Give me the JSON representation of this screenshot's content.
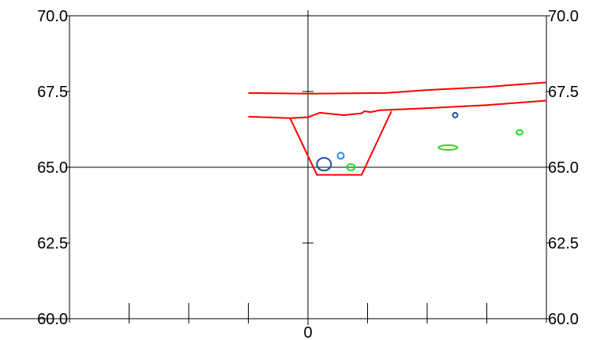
{
  "chart_data": {
    "type": "scatter",
    "title": "",
    "xlabel": "",
    "ylabel": "",
    "xlim": [
      -4,
      4
    ],
    "ylim": [
      60.0,
      70.0
    ],
    "grid": false,
    "x_tick_values": [
      -3,
      -2,
      -1,
      0,
      1,
      2,
      3
    ],
    "x_tick_labels": [
      {
        "x": 0,
        "label": "0"
      }
    ],
    "y_ticks": [
      {
        "value": 70.0,
        "label": "70.0"
      },
      {
        "value": 67.5,
        "label": "67.5"
      },
      {
        "value": 65.0,
        "label": "65.0"
      },
      {
        "value": 62.5,
        "label": "62.5"
      },
      {
        "value": 60.0,
        "label": "60.0"
      }
    ],
    "lines": [
      {
        "name": "",
        "color": "#ff0000",
        "points": [
          [
            -1.0,
            67.45
          ],
          [
            0.0,
            67.43
          ],
          [
            1.3,
            67.45
          ],
          [
            2.0,
            67.55
          ],
          [
            3.0,
            67.65
          ],
          [
            4.0,
            67.8
          ]
        ]
      },
      {
        "name": "",
        "color": "#ff0000",
        "points": [
          [
            -1.0,
            66.67
          ],
          [
            -0.3,
            66.62
          ],
          [
            0.0,
            66.65
          ],
          [
            0.2,
            66.8
          ],
          [
            0.6,
            66.72
          ],
          [
            0.9,
            66.78
          ],
          [
            0.95,
            66.85
          ],
          [
            1.05,
            66.82
          ],
          [
            1.2,
            66.88
          ],
          [
            2.0,
            66.95
          ],
          [
            3.0,
            67.05
          ],
          [
            4.0,
            67.2
          ]
        ]
      },
      {
        "name": "",
        "color": "#ff0000",
        "points": [
          [
            -0.3,
            66.62
          ],
          [
            0.15,
            64.75
          ],
          [
            0.9,
            64.75
          ],
          [
            1.4,
            66.85
          ]
        ]
      }
    ],
    "markers": [
      {
        "x": 0.27,
        "y": 65.1,
        "rx": 9,
        "ry": 8,
        "color": "#1f4e9a",
        "width": 2
      },
      {
        "x": 0.55,
        "y": 65.38,
        "rx": 4,
        "ry": 4,
        "color": "#2b8be6",
        "width": 2
      },
      {
        "x": 0.72,
        "y": 65.0,
        "rx": 5,
        "ry": 4,
        "color": "#22dd22",
        "width": 2
      },
      {
        "x": 2.47,
        "y": 66.72,
        "rx": 3,
        "ry": 3,
        "color": "#1f4e9a",
        "width": 2
      },
      {
        "x": 2.35,
        "y": 65.65,
        "rx": 12,
        "ry": 3,
        "color": "#22dd22",
        "width": 2
      },
      {
        "x": 3.55,
        "y": 66.15,
        "rx": 4,
        "ry": 3,
        "color": "#22dd22",
        "width": 2
      }
    ]
  }
}
